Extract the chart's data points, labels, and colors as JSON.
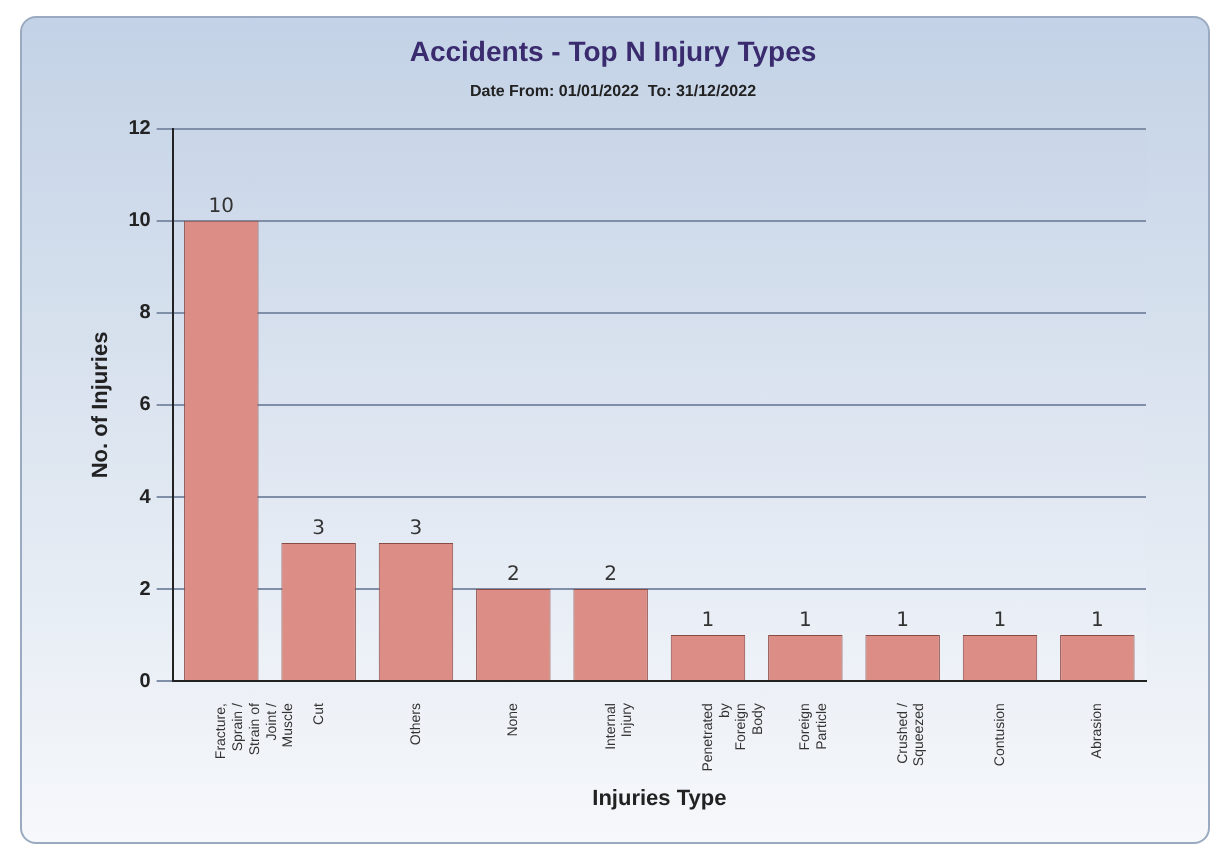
{
  "chart_data": {
    "type": "bar",
    "title": "Accidents - Top N Injury Types",
    "subtitle": "Date From: 01/01/2022  To: 31/12/2022",
    "xlabel": "Injuries Type",
    "ylabel": "No. of Injuries",
    "categories": [
      "Fracture, Sprain / Strain of Joint / Muscle",
      "Cut",
      "Others",
      "None",
      "Internal Injury",
      "Penetrated by Foreign Body",
      "Foreign Particle",
      "Crushed / Squeezed",
      "Contusion",
      "Abrasion"
    ],
    "values": [
      10,
      3,
      3,
      2,
      2,
      1,
      1,
      1,
      1,
      1
    ],
    "color": "#dc8e86",
    "ylim": [
      0,
      12
    ],
    "yticks": [
      0,
      2,
      4,
      6,
      8,
      10,
      12
    ],
    "grid": "y",
    "data_labels": true
  }
}
